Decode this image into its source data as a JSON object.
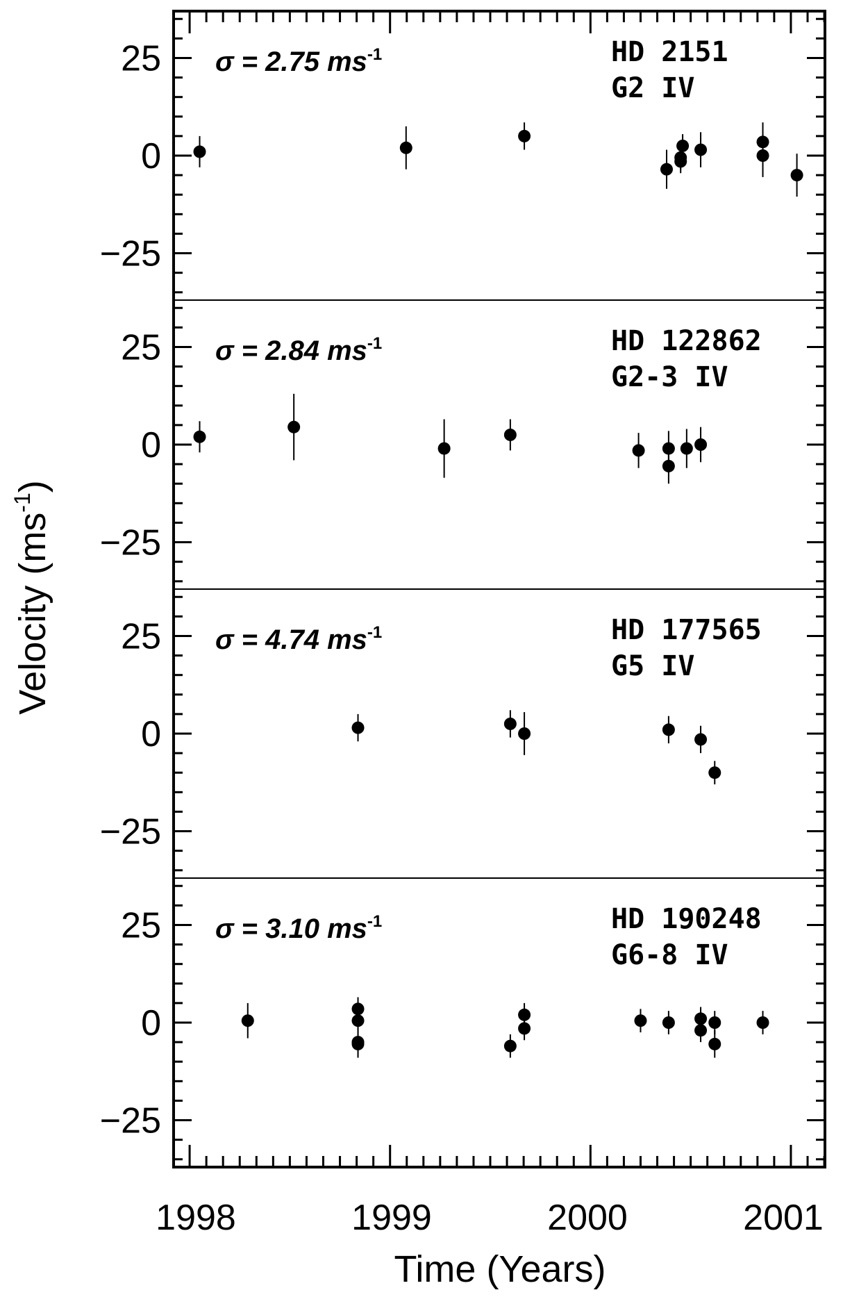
{
  "figure": {
    "xlabel": "Time (Years)",
    "ylabel": "Velocity (ms",
    "ylabel_sup": "-1",
    "ylabel_close": ")",
    "x_ticks": [
      "1998",
      "1999",
      "2000",
      "2001"
    ],
    "y_ticks": [
      "25",
      "0",
      "−25"
    ],
    "sigma_symbol": "σ",
    "sigma_unit": "ms",
    "sigma_unit_sup": "-1"
  },
  "chart_data": [
    {
      "type": "scatter",
      "star": "HD 2151",
      "spectral_type": "G2 IV",
      "sigma_value": "2.75",
      "xlim": [
        1997.92,
        2001.17
      ],
      "ylim": [
        -37,
        37
      ],
      "x": [
        1998.05,
        1999.08,
        1999.67,
        2000.38,
        2000.45,
        2000.45,
        2000.46,
        2000.55,
        2000.86,
        2000.86,
        2001.03
      ],
      "y": [
        1,
        2,
        5,
        -3.5,
        -1.5,
        -0.5,
        2.5,
        1.5,
        3.5,
        0,
        -5
      ],
      "yerr": [
        4,
        5.5,
        3.5,
        5,
        3,
        3,
        3,
        4.5,
        5,
        5.5,
        5.5
      ]
    },
    {
      "type": "scatter",
      "star": "HD 122862",
      "spectral_type": "G2-3 IV",
      "sigma_value": "2.84",
      "xlim": [
        1997.92,
        2001.17
      ],
      "ylim": [
        -37,
        37
      ],
      "x": [
        1998.05,
        1998.52,
        1999.27,
        1999.6,
        2000.24,
        2000.39,
        2000.39,
        2000.48,
        2000.55
      ],
      "y": [
        2,
        4.5,
        -1,
        2.5,
        -1.5,
        -1,
        -5.5,
        -1,
        0
      ],
      "yerr": [
        4,
        8.5,
        7.5,
        4,
        4.5,
        4.5,
        4.5,
        5,
        4.5
      ]
    },
    {
      "type": "scatter",
      "star": "HD 177565",
      "spectral_type": "G5 IV",
      "sigma_value": "4.74",
      "xlim": [
        1997.92,
        2001.17
      ],
      "ylim": [
        -37,
        37
      ],
      "x": [
        1998.84,
        1999.6,
        1999.67,
        2000.39,
        2000.55,
        2000.62
      ],
      "y": [
        1.5,
        2.5,
        0,
        1,
        -1.5,
        -10
      ],
      "yerr": [
        3.5,
        3.5,
        5.5,
        3.5,
        3.5,
        3
      ]
    },
    {
      "type": "scatter",
      "star": "HD 190248",
      "spectral_type": "G6-8 IV",
      "sigma_value": "3.10",
      "xlim": [
        1997.92,
        2001.17
      ],
      "ylim": [
        -37,
        37
      ],
      "x": [
        1998.29,
        1998.84,
        1998.84,
        1998.84,
        1998.84,
        1999.6,
        1999.67,
        1999.67,
        2000.25,
        2000.39,
        2000.55,
        2000.55,
        2000.62,
        2000.62,
        2000.86
      ],
      "y": [
        0.5,
        3.5,
        0.5,
        -5,
        -5.5,
        -6,
        -1.5,
        2,
        0.5,
        0,
        1,
        -2,
        0,
        -5.5,
        0
      ],
      "yerr": [
        4.5,
        3,
        3,
        3.5,
        3.5,
        3,
        3,
        3,
        3,
        3,
        3,
        3,
        3,
        3.5,
        3
      ]
    }
  ]
}
